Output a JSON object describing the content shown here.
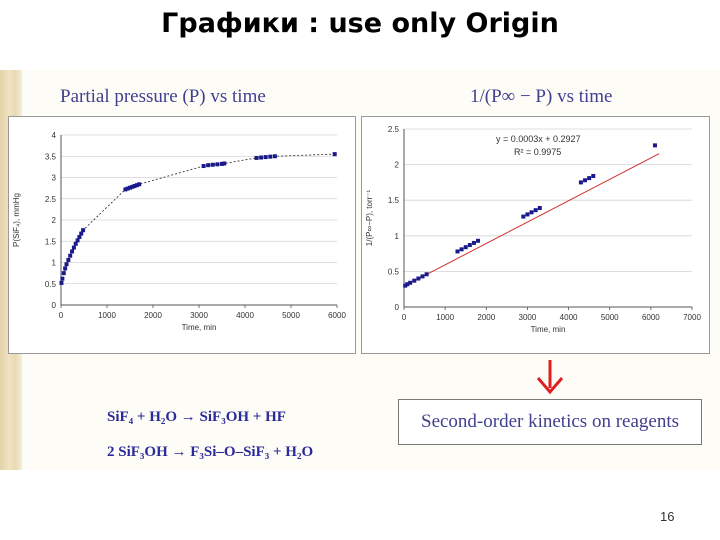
{
  "slide": {
    "title": "Графики : use only Origin",
    "page_number": "16"
  },
  "equations": {
    "line1": "SiF₄ + H₂O → SiF₃OH + HF",
    "line2": "2 SiF₃OH → F₃Si–O–SiF₃ + H₂O"
  },
  "conclusion": {
    "text": "Second-order kinetics on reagents",
    "arrow_color": "#e02020"
  },
  "colors": {
    "title_blue": "#404090",
    "marker_blue": "#1a1a8a",
    "fit_red": "#d03030"
  },
  "chart_data": [
    {
      "type": "scatter",
      "title": "Partial pressure (P) vs time",
      "xlabel": "Time, min",
      "ylabel": "P(SiF₄), mmHg",
      "xlim": [
        0,
        6000
      ],
      "ylim": [
        0,
        4
      ],
      "xticks": [
        "0",
        "1000",
        "2000",
        "3000",
        "4000",
        "5000",
        "6000"
      ],
      "yticks": [
        "0",
        "0.5",
        "1",
        "1.5",
        "2",
        "2.5",
        "3",
        "3.5",
        "4"
      ],
      "grid": true,
      "trend": "dashed curve",
      "x": [
        10,
        30,
        60,
        90,
        120,
        160,
        200,
        240,
        280,
        320,
        360,
        400,
        440,
        480,
        1400,
        1450,
        1500,
        1550,
        1600,
        1650,
        1700,
        3100,
        3200,
        3300,
        3400,
        3500,
        3550,
        4250,
        4350,
        4450,
        4550,
        4650,
        5950
      ],
      "y": [
        0.52,
        0.62,
        0.75,
        0.86,
        0.96,
        1.06,
        1.16,
        1.26,
        1.35,
        1.44,
        1.52,
        1.6,
        1.68,
        1.76,
        2.72,
        2.74,
        2.76,
        2.78,
        2.8,
        2.82,
        2.84,
        3.27,
        3.29,
        3.3,
        3.31,
        3.32,
        3.33,
        3.46,
        3.47,
        3.48,
        3.49,
        3.5,
        3.55
      ]
    },
    {
      "type": "scatter",
      "title": "1/(P∞ − P) vs time",
      "xlabel": "Time, min",
      "ylabel": "1/(P∞−P), torr⁻¹",
      "xlim": [
        0,
        7000
      ],
      "ylim": [
        0,
        2.5
      ],
      "xticks": [
        "0",
        "1000",
        "2000",
        "3000",
        "4000",
        "5000",
        "6000",
        "7000"
      ],
      "yticks": [
        "0",
        "0.5",
        "1",
        "1.5",
        "2",
        "2.5"
      ],
      "grid": true,
      "fit_equation": "y = 0.0003x + 0.2927",
      "fit_r2": "R² = 0.9975",
      "fit": {
        "slope": 0.0003,
        "intercept": 0.2927,
        "x_range": [
          0,
          6200
        ]
      },
      "x": [
        30,
        80,
        150,
        250,
        350,
        450,
        550,
        1300,
        1400,
        1500,
        1600,
        1700,
        1800,
        2900,
        3000,
        3100,
        3200,
        3300,
        4300,
        4400,
        4500,
        4600,
        6100
      ],
      "y": [
        0.3,
        0.32,
        0.34,
        0.37,
        0.4,
        0.43,
        0.46,
        0.78,
        0.81,
        0.84,
        0.87,
        0.9,
        0.93,
        1.27,
        1.3,
        1.33,
        1.36,
        1.39,
        1.75,
        1.78,
        1.81,
        1.84,
        2.27
      ]
    }
  ]
}
